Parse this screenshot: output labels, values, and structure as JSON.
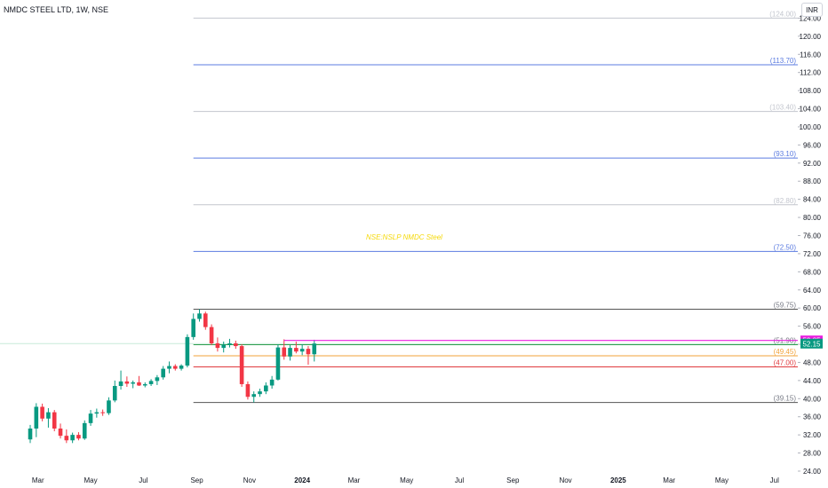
{
  "header": {
    "symbol": "NMDC STEEL LTD, 1W, NSE",
    "currency": "INR"
  },
  "annotation": "NSE:NSLP NMDC Steel",
  "chart_data": {
    "type": "candlestick",
    "x_ticks": [
      {
        "label": "Mar",
        "date": "2023-03-01"
      },
      {
        "label": "May",
        "date": "2023-05-01"
      },
      {
        "label": "Jul",
        "date": "2023-07-01"
      },
      {
        "label": "Sep",
        "date": "2023-09-01"
      },
      {
        "label": "Nov",
        "date": "2023-11-01"
      },
      {
        "label": "2024",
        "date": "2024-01-01",
        "bold": true
      },
      {
        "label": "Mar",
        "date": "2024-03-01"
      },
      {
        "label": "May",
        "date": "2024-05-01"
      },
      {
        "label": "Jul",
        "date": "2024-07-01"
      },
      {
        "label": "Sep",
        "date": "2024-09-01"
      },
      {
        "label": "Nov",
        "date": "2024-11-01"
      },
      {
        "label": "2025",
        "date": "2025-01-01",
        "bold": true
      },
      {
        "label": "Mar",
        "date": "2025-03-01"
      },
      {
        "label": "May",
        "date": "2025-05-01"
      },
      {
        "label": "Jul",
        "date": "2025-07-01"
      }
    ],
    "y_ticks": [
      24.0,
      28.0,
      32.0,
      36.0,
      40.0,
      44.0,
      48.0,
      52.0,
      56.0,
      60.0,
      64.0,
      68.0,
      72.0,
      76.0,
      80.0,
      84.0,
      88.0,
      92.0,
      96.0,
      100.0,
      104.0,
      108.0,
      112.0,
      116.0,
      120.0,
      124.0
    ],
    "ylim": [
      23.8,
      128.0
    ],
    "xlim": [
      "2023-01-16",
      "2025-07-28"
    ],
    "level_start": "2023-08-28",
    "levels": [
      {
        "value": 124.0,
        "label": "(124.00)",
        "color": "#c3c6ce",
        "label_color": "#c3c6ce"
      },
      {
        "value": 113.7,
        "label": "(113.70)",
        "color": "#5b7be0",
        "label_color": "#5b7be0"
      },
      {
        "value": 103.4,
        "label": "(103.40)",
        "color": "#c3c6ce",
        "label_color": "#c3c6ce"
      },
      {
        "value": 93.1,
        "label": "(93.10)",
        "color": "#5b7be0",
        "label_color": "#5b7be0"
      },
      {
        "value": 82.8,
        "label": "(82.80)",
        "color": "#c3c6ce",
        "label_color": "#c3c6ce"
      },
      {
        "value": 72.5,
        "label": "(72.50)",
        "color": "#5b7be0",
        "label_color": "#5b7be0"
      },
      {
        "value": 59.75,
        "label": "(59.75)",
        "color": "#555555",
        "label_color": "#787b86"
      },
      {
        "value": 51.9,
        "label": "(51.90)",
        "color": "#2e9e4f",
        "label_color": "#787b86"
      },
      {
        "value": 49.45,
        "label": "(49.45)",
        "color": "#f2a33a",
        "label_color": "#f2a33a"
      },
      {
        "value": 47.0,
        "label": "(47.00)",
        "color": "#e03a3e",
        "label_color": "#e03a3e"
      },
      {
        "value": 39.15,
        "label": "(39.15)",
        "color": "#555555",
        "label_color": "#787b86"
      }
    ],
    "markers": [
      {
        "value": 52.85,
        "label": "52.85",
        "color": "#e91ee0",
        "start": "2023-12-11"
      },
      {
        "value": 52.15,
        "label": "52.15",
        "color": "#089981",
        "start": null
      }
    ],
    "candles": [
      {
        "date": "2023-02-20",
        "o": 31.0,
        "h": 34.2,
        "l": 30.2,
        "c": 33.4
      },
      {
        "date": "2023-02-27",
        "o": 33.4,
        "h": 39.0,
        "l": 31.5,
        "c": 38.2
      },
      {
        "date": "2023-03-06",
        "o": 38.2,
        "h": 38.9,
        "l": 35.0,
        "c": 35.6
      },
      {
        "date": "2023-03-13",
        "o": 35.6,
        "h": 37.9,
        "l": 33.6,
        "c": 37.0
      },
      {
        "date": "2023-03-20",
        "o": 37.0,
        "h": 37.5,
        "l": 32.8,
        "c": 33.4
      },
      {
        "date": "2023-03-27",
        "o": 33.4,
        "h": 34.5,
        "l": 31.2,
        "c": 31.8
      },
      {
        "date": "2023-04-03",
        "o": 31.8,
        "h": 33.2,
        "l": 30.2,
        "c": 30.8
      },
      {
        "date": "2023-04-10",
        "o": 30.8,
        "h": 32.5,
        "l": 30.2,
        "c": 32.0
      },
      {
        "date": "2023-04-17",
        "o": 32.0,
        "h": 32.6,
        "l": 30.8,
        "c": 31.2
      },
      {
        "date": "2023-04-24",
        "o": 31.2,
        "h": 35.2,
        "l": 30.9,
        "c": 34.6
      },
      {
        "date": "2023-05-01",
        "o": 34.6,
        "h": 37.5,
        "l": 34.0,
        "c": 36.7
      },
      {
        "date": "2023-05-08",
        "o": 36.7,
        "h": 37.8,
        "l": 35.8,
        "c": 37.0
      },
      {
        "date": "2023-05-15",
        "o": 37.0,
        "h": 37.6,
        "l": 36.2,
        "c": 36.8
      },
      {
        "date": "2023-05-22",
        "o": 36.8,
        "h": 40.3,
        "l": 36.4,
        "c": 39.6
      },
      {
        "date": "2023-05-29",
        "o": 39.6,
        "h": 44.0,
        "l": 39.2,
        "c": 42.8
      },
      {
        "date": "2023-06-05",
        "o": 42.8,
        "h": 46.2,
        "l": 42.0,
        "c": 43.8
      },
      {
        "date": "2023-06-12",
        "o": 43.8,
        "h": 44.9,
        "l": 42.6,
        "c": 43.3
      },
      {
        "date": "2023-06-19",
        "o": 43.3,
        "h": 44.0,
        "l": 42.3,
        "c": 43.6
      },
      {
        "date": "2023-06-26",
        "o": 43.6,
        "h": 45.0,
        "l": 42.8,
        "c": 42.9
      },
      {
        "date": "2023-07-03",
        "o": 42.9,
        "h": 43.6,
        "l": 42.5,
        "c": 43.2
      },
      {
        "date": "2023-07-10",
        "o": 43.2,
        "h": 44.3,
        "l": 42.8,
        "c": 43.9
      },
      {
        "date": "2023-07-17",
        "o": 43.9,
        "h": 45.2,
        "l": 43.0,
        "c": 44.7
      },
      {
        "date": "2023-07-24",
        "o": 44.7,
        "h": 47.2,
        "l": 44.2,
        "c": 46.6
      },
      {
        "date": "2023-07-31",
        "o": 46.6,
        "h": 48.2,
        "l": 45.6,
        "c": 47.2
      },
      {
        "date": "2023-08-07",
        "o": 47.2,
        "h": 47.6,
        "l": 46.2,
        "c": 46.6
      },
      {
        "date": "2023-08-14",
        "o": 46.6,
        "h": 47.6,
        "l": 46.2,
        "c": 47.3
      },
      {
        "date": "2023-08-21",
        "o": 47.3,
        "h": 54.2,
        "l": 46.9,
        "c": 53.6
      },
      {
        "date": "2023-08-28",
        "o": 53.6,
        "h": 58.8,
        "l": 53.0,
        "c": 57.6
      },
      {
        "date": "2023-09-04",
        "o": 57.6,
        "h": 59.75,
        "l": 57.0,
        "c": 58.8
      },
      {
        "date": "2023-09-11",
        "o": 58.8,
        "h": 59.2,
        "l": 55.2,
        "c": 55.8
      },
      {
        "date": "2023-09-18",
        "o": 55.8,
        "h": 56.4,
        "l": 51.8,
        "c": 52.2
      },
      {
        "date": "2023-09-25",
        "o": 52.2,
        "h": 53.5,
        "l": 50.4,
        "c": 51.2
      },
      {
        "date": "2023-10-02",
        "o": 51.2,
        "h": 52.6,
        "l": 50.2,
        "c": 51.9
      },
      {
        "date": "2023-10-09",
        "o": 51.9,
        "h": 53.2,
        "l": 51.3,
        "c": 52.2
      },
      {
        "date": "2023-10-16",
        "o": 52.2,
        "h": 52.8,
        "l": 51.0,
        "c": 51.6
      },
      {
        "date": "2023-10-23",
        "o": 51.6,
        "h": 52.0,
        "l": 42.6,
        "c": 43.2
      },
      {
        "date": "2023-10-30",
        "o": 43.2,
        "h": 43.8,
        "l": 39.8,
        "c": 40.4
      },
      {
        "date": "2023-11-06",
        "o": 40.4,
        "h": 41.6,
        "l": 39.15,
        "c": 41.0
      },
      {
        "date": "2023-11-13",
        "o": 41.0,
        "h": 42.2,
        "l": 40.4,
        "c": 41.6
      },
      {
        "date": "2023-11-20",
        "o": 41.6,
        "h": 43.6,
        "l": 41.0,
        "c": 42.9
      },
      {
        "date": "2023-11-27",
        "o": 42.9,
        "h": 45.0,
        "l": 42.2,
        "c": 44.2
      },
      {
        "date": "2023-12-04",
        "o": 44.2,
        "h": 52.0,
        "l": 44.0,
        "c": 51.3
      },
      {
        "date": "2023-12-11",
        "o": 51.3,
        "h": 53.1,
        "l": 48.6,
        "c": 49.3
      },
      {
        "date": "2023-12-18",
        "o": 49.3,
        "h": 51.8,
        "l": 48.4,
        "c": 51.2
      },
      {
        "date": "2023-12-25",
        "o": 51.2,
        "h": 52.6,
        "l": 50.0,
        "c": 50.4
      },
      {
        "date": "2024-01-01",
        "o": 50.4,
        "h": 52.0,
        "l": 49.6,
        "c": 51.0
      },
      {
        "date": "2024-01-08",
        "o": 51.0,
        "h": 51.6,
        "l": 47.5,
        "c": 49.8
      },
      {
        "date": "2024-01-15",
        "o": 49.8,
        "h": 53.0,
        "l": 48.2,
        "c": 52.15
      }
    ]
  }
}
